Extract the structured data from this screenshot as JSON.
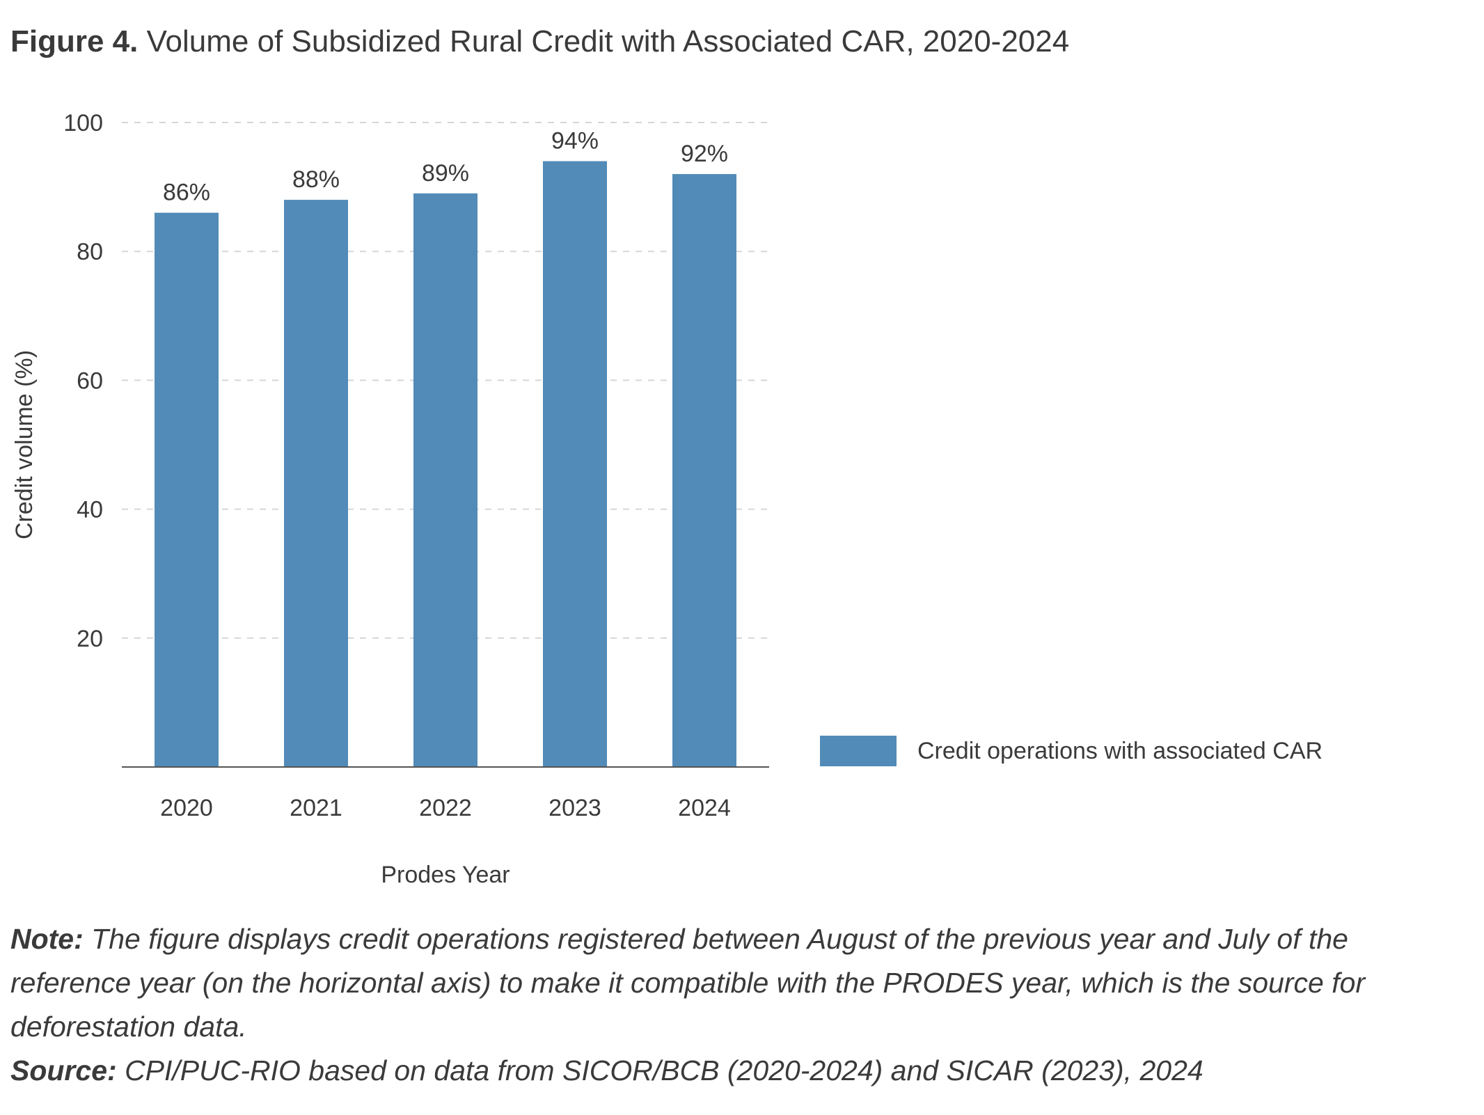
{
  "figure": {
    "label": "Figure 4.",
    "title": "Volume of Subsidized Rural Credit with Associated CAR, 2020-2024"
  },
  "chart_data": {
    "type": "bar",
    "categories": [
      "2020",
      "2021",
      "2022",
      "2023",
      "2024"
    ],
    "series": [
      {
        "name": "Credit operations with associated CAR",
        "values": [
          86,
          88,
          89,
          94,
          92
        ],
        "data_labels": [
          "86%",
          "88%",
          "89%",
          "94%",
          "92%"
        ],
        "color": "#528bb8"
      }
    ],
    "xlabel": "Prodes Year",
    "ylabel": "Credit volume (%)",
    "ylim": [
      0,
      100
    ],
    "yticks": [
      20,
      40,
      60,
      80,
      100
    ],
    "grid": "horizontal dashed",
    "legend": "right"
  },
  "note": {
    "label": "Note:",
    "text": "The figure displays credit operations registered between August of the previous year and July of the reference year (on the horizontal axis) to make it compatible with the PRODES year, which is the source for deforestation data."
  },
  "source": {
    "label": "Source:",
    "text": "CPI/PUC-RIO based on data from SICOR/BCB (2020-2024) and SICAR (2023), 2024"
  }
}
